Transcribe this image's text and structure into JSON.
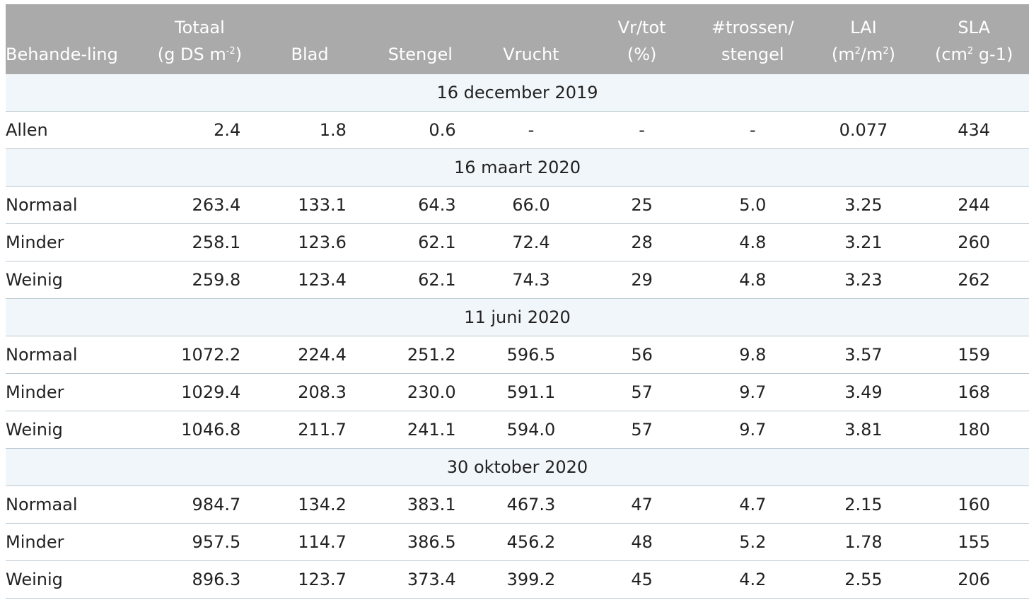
{
  "header": {
    "behandeling": "Behande-ling",
    "totaal_line1": "Totaal",
    "totaal_line2_pre": "(g DS m",
    "totaal_line2_sup": "-2",
    "totaal_line2_post": ")",
    "blad": "Blad",
    "stengel": "Stengel",
    "vrucht": "Vrucht",
    "vrtot_line1": "Vr/tot",
    "vrtot_line2": "(%)",
    "trossen_line1": "#trossen/",
    "trossen_line2": "stengel",
    "lai_line1": "LAI",
    "lai_line2_a": "(m",
    "lai_line2_sup1": "2",
    "lai_line2_b": "/m",
    "lai_line2_sup2": "2",
    "lai_line2_c": ")",
    "sla_line1": "SLA",
    "sla_line2_pre": "(cm",
    "sla_line2_sup": "2",
    "sla_line2_post": " g-1)"
  },
  "groups": [
    {
      "date": "16 december 2019",
      "rows": [
        {
          "behandeling": "Allen",
          "totaal": "2.4",
          "blad": "1.8",
          "stengel": "0.6",
          "vrucht": "-",
          "vrtot": "-",
          "trossen": "-",
          "lai": "0.077",
          "sla": "434"
        }
      ]
    },
    {
      "date": "16 maart 2020",
      "rows": [
        {
          "behandeling": "Normaal",
          "totaal": "263.4",
          "blad": "133.1",
          "stengel": "64.3",
          "vrucht": "66.0",
          "vrtot": "25",
          "trossen": "5.0",
          "lai": "3.25",
          "sla": "244"
        },
        {
          "behandeling": "Minder",
          "totaal": "258.1",
          "blad": "123.6",
          "stengel": "62.1",
          "vrucht": "72.4",
          "vrtot": "28",
          "trossen": "4.8",
          "lai": "3.21",
          "sla": "260"
        },
        {
          "behandeling": "Weinig",
          "totaal": "259.8",
          "blad": "123.4",
          "stengel": "62.1",
          "vrucht": "74.3",
          "vrtot": "29",
          "trossen": "4.8",
          "lai": "3.23",
          "sla": "262"
        }
      ]
    },
    {
      "date": "11 juni 2020",
      "rows": [
        {
          "behandeling": "Normaal",
          "totaal": "1072.2",
          "blad": "224.4",
          "stengel": "251.2",
          "vrucht": "596.5",
          "vrtot": "56",
          "trossen": "9.8",
          "lai": "3.57",
          "sla": "159"
        },
        {
          "behandeling": "Minder",
          "totaal": "1029.4",
          "blad": "208.3",
          "stengel": "230.0",
          "vrucht": "591.1",
          "vrtot": "57",
          "trossen": "9.7",
          "lai": "3.49",
          "sla": "168"
        },
        {
          "behandeling": "Weinig",
          "totaal": "1046.8",
          "blad": "211.7",
          "stengel": "241.1",
          "vrucht": "594.0",
          "vrtot": "57",
          "trossen": "9.7",
          "lai": "3.81",
          "sla": "180"
        }
      ]
    },
    {
      "date": "30 oktober 2020",
      "rows": [
        {
          "behandeling": "Normaal",
          "totaal": "984.7",
          "blad": "134.2",
          "stengel": "383.1",
          "vrucht": "467.3",
          "vrtot": "47",
          "trossen": "4.7",
          "lai": "2.15",
          "sla": "160"
        },
        {
          "behandeling": "Minder",
          "totaal": "957.5",
          "blad": "114.7",
          "stengel": "386.5",
          "vrucht": "456.2",
          "vrtot": "48",
          "trossen": "5.2",
          "lai": "1.78",
          "sla": "155"
        },
        {
          "behandeling": "Weinig",
          "totaal": "896.3",
          "blad": "123.7",
          "stengel": "373.4",
          "vrucht": "399.2",
          "vrtot": "45",
          "trossen": "4.2",
          "lai": "2.55",
          "sla": "206"
        }
      ]
    }
  ]
}
